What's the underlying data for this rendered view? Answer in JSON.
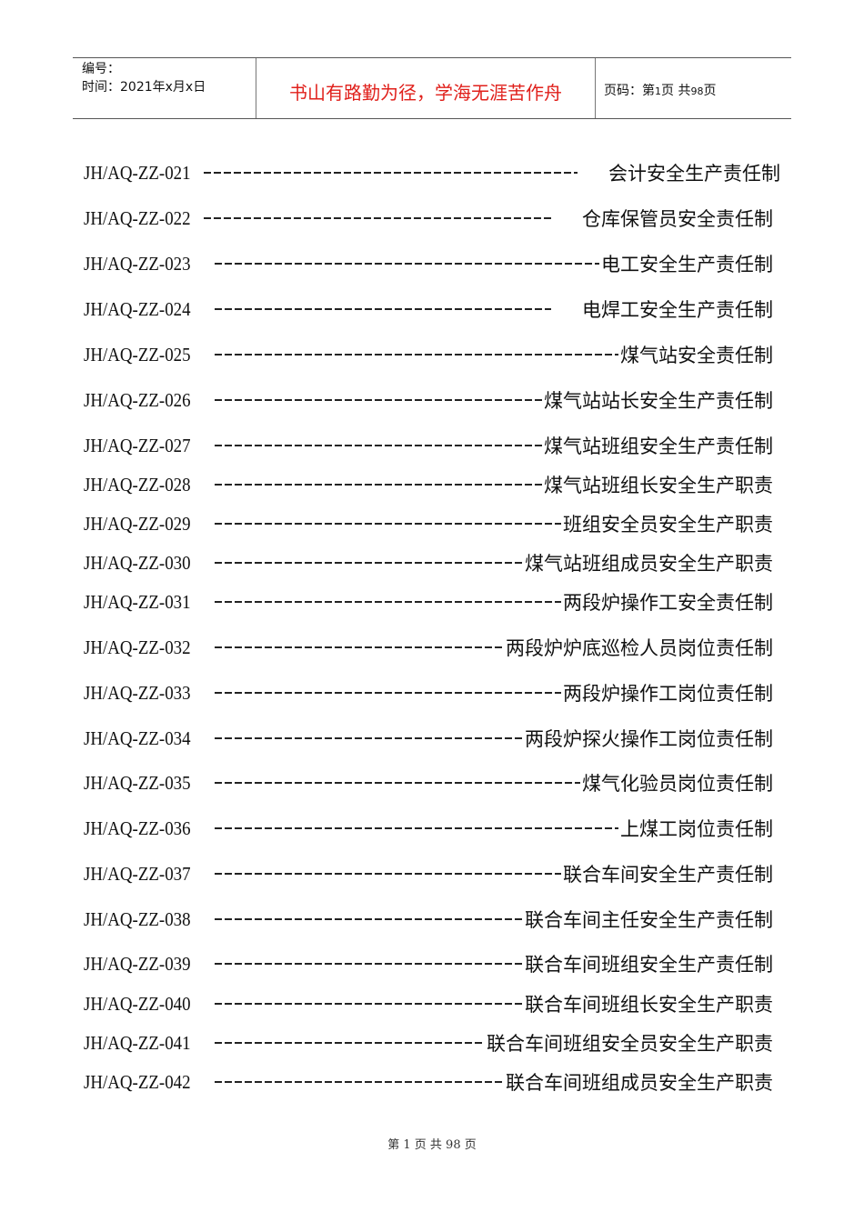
{
  "header": {
    "number_label": "编号：",
    "time_label": "时间：2021年x月x日",
    "motto": "书山有路勤为径，学海无涯苦作舟",
    "page_prefix": "页码：第",
    "page_current": "1",
    "page_mid": "页  共",
    "page_total": "98",
    "page_suffix": "页"
  },
  "entries": [
    {
      "code": "JH/AQ-ZZ-021",
      "title": "会计安全生产责任制"
    },
    {
      "code": "JH/AQ-ZZ-022",
      "title": "仓库保管员安全责任制"
    },
    {
      "code": "JH/AQ-ZZ-023",
      "title": "电工安全生产责任制"
    },
    {
      "code": "JH/AQ-ZZ-024",
      "title": "电焊工安全生产责任制"
    },
    {
      "code": "JH/AQ-ZZ-025",
      "title": "煤气站安全责任制"
    },
    {
      "code": "JH/AQ-ZZ-026",
      "title": "煤气站站长安全生产责任制"
    },
    {
      "code": "JH/AQ-ZZ-027",
      "title": "煤气站班组安全生产责任制"
    },
    {
      "code": "JH/AQ-ZZ-028",
      "title": "煤气站班组长安全生产职责"
    },
    {
      "code": "JH/AQ-ZZ-029",
      "title": "班组安全员安全生产职责"
    },
    {
      "code": "JH/AQ-ZZ-030",
      "title": "煤气站班组成员安全生产职责"
    },
    {
      "code": "JH/AQ-ZZ-031",
      "title": "两段炉操作工安全责任制"
    },
    {
      "code": "JH/AQ-ZZ-032",
      "title": "两段炉炉底巡检人员岗位责任制"
    },
    {
      "code": "JH/AQ-ZZ-033",
      "title": "两段炉操作工岗位责任制"
    },
    {
      "code": "JH/AQ-ZZ-034",
      "title": "两段炉探火操作工岗位责任制"
    },
    {
      "code": "JH/AQ-ZZ-035",
      "title": "煤气化验员岗位责任制"
    },
    {
      "code": "JH/AQ-ZZ-036",
      "title": "上煤工岗位责任制"
    },
    {
      "code": "JH/AQ-ZZ-037",
      "title": "联合车间安全生产责任制"
    },
    {
      "code": "JH/AQ-ZZ-038",
      "title": "联合车间主任安全生产责任制"
    },
    {
      "code": "JH/AQ-ZZ-039",
      "title": "联合车间班组安全生产责任制"
    },
    {
      "code": "JH/AQ-ZZ-040",
      "title": "联合车间班组长安全生产职责"
    },
    {
      "code": "JH/AQ-ZZ-041",
      "title": "联合车间班组安全员安全生产职责"
    },
    {
      "code": "JH/AQ-ZZ-042",
      "title": "联合车间班组成员安全生产职责"
    }
  ],
  "footer": "第 1 页 共 98 页"
}
